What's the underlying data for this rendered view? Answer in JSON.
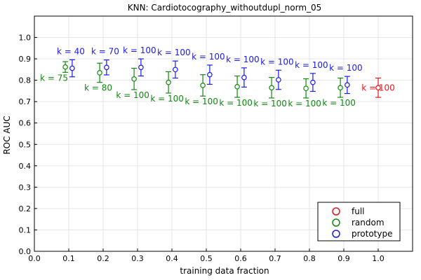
{
  "chart_data": {
    "type": "scatter",
    "title": "KNN: Cardiotocography_withoutdupl_norm_05",
    "xlabel": "training data fraction",
    "ylabel": "ROC AUC",
    "xlim": [
      0.0,
      1.1
    ],
    "ylim": [
      0.0,
      1.1
    ],
    "xticks": [
      "0.0",
      "0.1",
      "0.2",
      "0.3",
      "0.4",
      "0.5",
      "0.6",
      "0.7",
      "0.8",
      "0.9",
      "1.0"
    ],
    "yticks": [
      "0.0",
      "0.1",
      "0.2",
      "0.3",
      "0.4",
      "0.5",
      "0.6",
      "0.7",
      "0.8",
      "0.9",
      "1.0"
    ],
    "grid": true,
    "legend_position": "bottom-right",
    "colors": {
      "full": "#e8141c",
      "random": "#118811",
      "prototype": "#1a1aee"
    },
    "series": [
      {
        "name": "full",
        "points": [
          {
            "x": 1.0,
            "y": 0.765,
            "err": 0.045,
            "label": "k = 100"
          }
        ]
      },
      {
        "name": "random",
        "points": [
          {
            "x": 0.09,
            "y": 0.862,
            "err": 0.025,
            "label": "k = 75"
          },
          {
            "x": 0.19,
            "y": 0.835,
            "err": 0.045,
            "label": "k = 80"
          },
          {
            "x": 0.29,
            "y": 0.806,
            "err": 0.05,
            "label": "k = 100"
          },
          {
            "x": 0.39,
            "y": 0.79,
            "err": 0.05,
            "label": "k = 100"
          },
          {
            "x": 0.49,
            "y": 0.776,
            "err": 0.05,
            "label": "k = 100"
          },
          {
            "x": 0.59,
            "y": 0.77,
            "err": 0.05,
            "label": "k = 100"
          },
          {
            "x": 0.69,
            "y": 0.765,
            "err": 0.048,
            "label": "k = 100"
          },
          {
            "x": 0.79,
            "y": 0.762,
            "err": 0.045,
            "label": "k = 100"
          },
          {
            "x": 0.89,
            "y": 0.765,
            "err": 0.045,
            "label": "k = 100"
          }
        ]
      },
      {
        "name": "prototype",
        "points": [
          {
            "x": 0.11,
            "y": 0.856,
            "err": 0.04,
            "label": "k = 40"
          },
          {
            "x": 0.21,
            "y": 0.86,
            "err": 0.035,
            "label": "k = 70"
          },
          {
            "x": 0.31,
            "y": 0.86,
            "err": 0.04,
            "label": "k = 100"
          },
          {
            "x": 0.41,
            "y": 0.85,
            "err": 0.04,
            "label": "k = 100"
          },
          {
            "x": 0.51,
            "y": 0.826,
            "err": 0.045,
            "label": "k = 100"
          },
          {
            "x": 0.61,
            "y": 0.813,
            "err": 0.045,
            "label": "k = 100"
          },
          {
            "x": 0.71,
            "y": 0.802,
            "err": 0.045,
            "label": "k = 100"
          },
          {
            "x": 0.81,
            "y": 0.79,
            "err": 0.042,
            "label": "k = 100"
          },
          {
            "x": 0.91,
            "y": 0.778,
            "err": 0.04,
            "label": "k = 100"
          }
        ]
      }
    ]
  }
}
